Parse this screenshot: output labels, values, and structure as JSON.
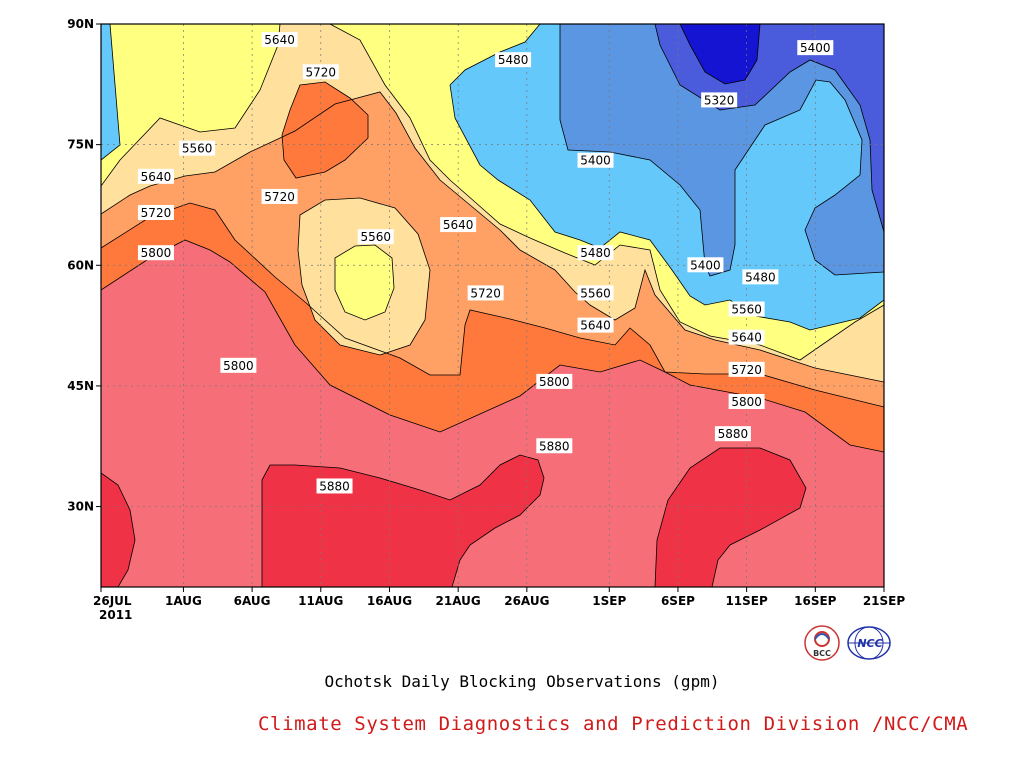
{
  "caption": "Ochotsk Daily Blocking Observations (gpm)",
  "credit": "Climate System Diagnostics and Prediction Division /NCC/CMA",
  "colors": {
    "credit": "#d11a1a",
    "bands": {
      "lt5320": "#1414d2",
      "5320_5400": "#4a5cdc",
      "5400_5480": "#5a96e2",
      "5480_5560": "#64c8fa",
      "5560_5640": "#ffff80",
      "5640_5720": "#ffe09c",
      "5720_5800": "#ffa064",
      "5800_5880": "#ff783c",
      "5880_5960": "#f56e78",
      "gt5880": "#f03246"
    }
  },
  "logos": {
    "left_text": "BCC",
    "right_text": "NCC"
  },
  "chart_data": {
    "type": "contour",
    "x_axis": {
      "ticks": [
        "26JUL",
        "1AUG",
        "6AUG",
        "11AUG",
        "16AUG",
        "21AUG",
        "26AUG",
        "1SEP",
        "6SEP",
        "11SEP",
        "16SEP",
        "21SEP"
      ],
      "year_label": "2011",
      "range": [
        "2011-07-26",
        "2011-09-21"
      ]
    },
    "y_axis": {
      "ticks": [
        "30N",
        "45N",
        "60N",
        "75N",
        "90N"
      ],
      "range": [
        20,
        90
      ]
    },
    "contour_levels": [
      5320,
      5400,
      5480,
      5560,
      5640,
      5720,
      5800,
      5880
    ],
    "contour_labels": [
      {
        "text": "5640",
        "date": "2011-08-08",
        "lat": 88
      },
      {
        "text": "5720",
        "date": "2011-08-11",
        "lat": 84
      },
      {
        "text": "5480",
        "date": "2011-08-25",
        "lat": 85.5
      },
      {
        "text": "5560",
        "date": "2011-08-02",
        "lat": 74.5
      },
      {
        "text": "5640",
        "date": "2011-07-30",
        "lat": 71
      },
      {
        "text": "5720",
        "date": "2011-08-08",
        "lat": 68.5
      },
      {
        "text": "5720",
        "date": "2011-07-30",
        "lat": 66.5
      },
      {
        "text": "5800",
        "date": "2011-07-30",
        "lat": 61.5
      },
      {
        "text": "5560",
        "date": "2011-08-15",
        "lat": 63.5
      },
      {
        "text": "5640",
        "date": "2011-08-21",
        "lat": 65
      },
      {
        "text": "5720",
        "date": "2011-08-23",
        "lat": 56.5
      },
      {
        "text": "5800",
        "date": "2011-08-05",
        "lat": 47.5
      },
      {
        "text": "5800",
        "date": "2011-08-28",
        "lat": 45.5
      },
      {
        "text": "5880",
        "date": "2011-08-12",
        "lat": 32.5
      },
      {
        "text": "5880",
        "date": "2011-08-28",
        "lat": 37.5
      },
      {
        "text": "5400",
        "date": "2011-08-31",
        "lat": 73
      },
      {
        "text": "5320",
        "date": "2011-09-09",
        "lat": 80.5
      },
      {
        "text": "5400",
        "date": "2011-09-16",
        "lat": 87
      },
      {
        "text": "5480",
        "date": "2011-08-31",
        "lat": 61.5
      },
      {
        "text": "5560",
        "date": "2011-08-31",
        "lat": 56.5
      },
      {
        "text": "5640",
        "date": "2011-08-31",
        "lat": 52.5
      },
      {
        "text": "5400",
        "date": "2011-09-08",
        "lat": 60
      },
      {
        "text": "5480",
        "date": "2011-09-12",
        "lat": 58.5
      },
      {
        "text": "5560",
        "date": "2011-09-11",
        "lat": 54.5
      },
      {
        "text": "5640",
        "date": "2011-09-11",
        "lat": 51
      },
      {
        "text": "5720",
        "date": "2011-09-11",
        "lat": 47
      },
      {
        "text": "5800",
        "date": "2011-09-11",
        "lat": 43
      },
      {
        "text": "5880",
        "date": "2011-09-10",
        "lat": 39
      }
    ]
  }
}
